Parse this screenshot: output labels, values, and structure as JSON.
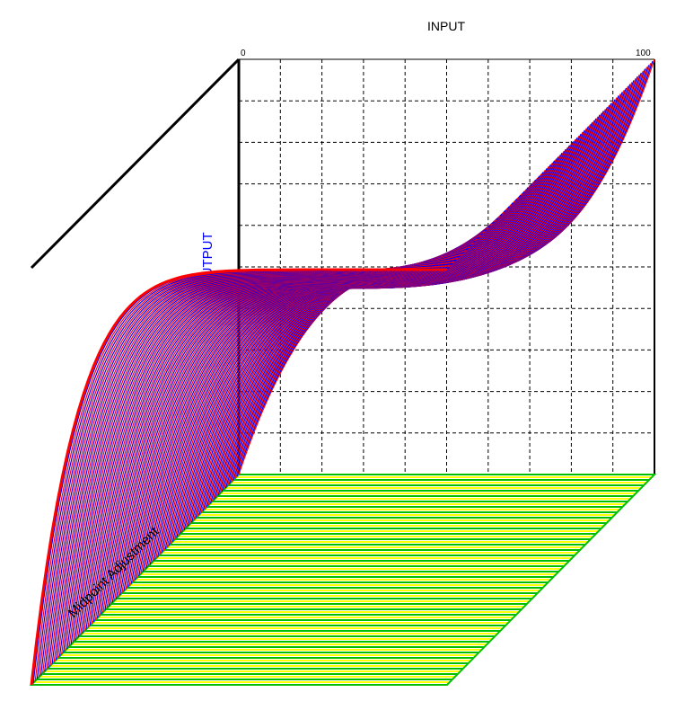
{
  "chart_data": {
    "type": "surface",
    "title": "",
    "xlabel": "INPUT",
    "ylabel": "OUTPUT",
    "zlabel": "Midpoint Adjustment",
    "x_ticks": [
      "0",
      "100"
    ],
    "xlim": [
      0,
      100
    ],
    "ylim": [
      0,
      100
    ],
    "grid": true,
    "series_colors": [
      "#ff0000",
      "#0000ff"
    ],
    "floor_colors": [
      "#00c000",
      "#ffff00"
    ],
    "description_of_surface": "S-shaped transfer curves; back slice plateaus at output 50 around input 50, front slice rises steeply to output 100"
  }
}
